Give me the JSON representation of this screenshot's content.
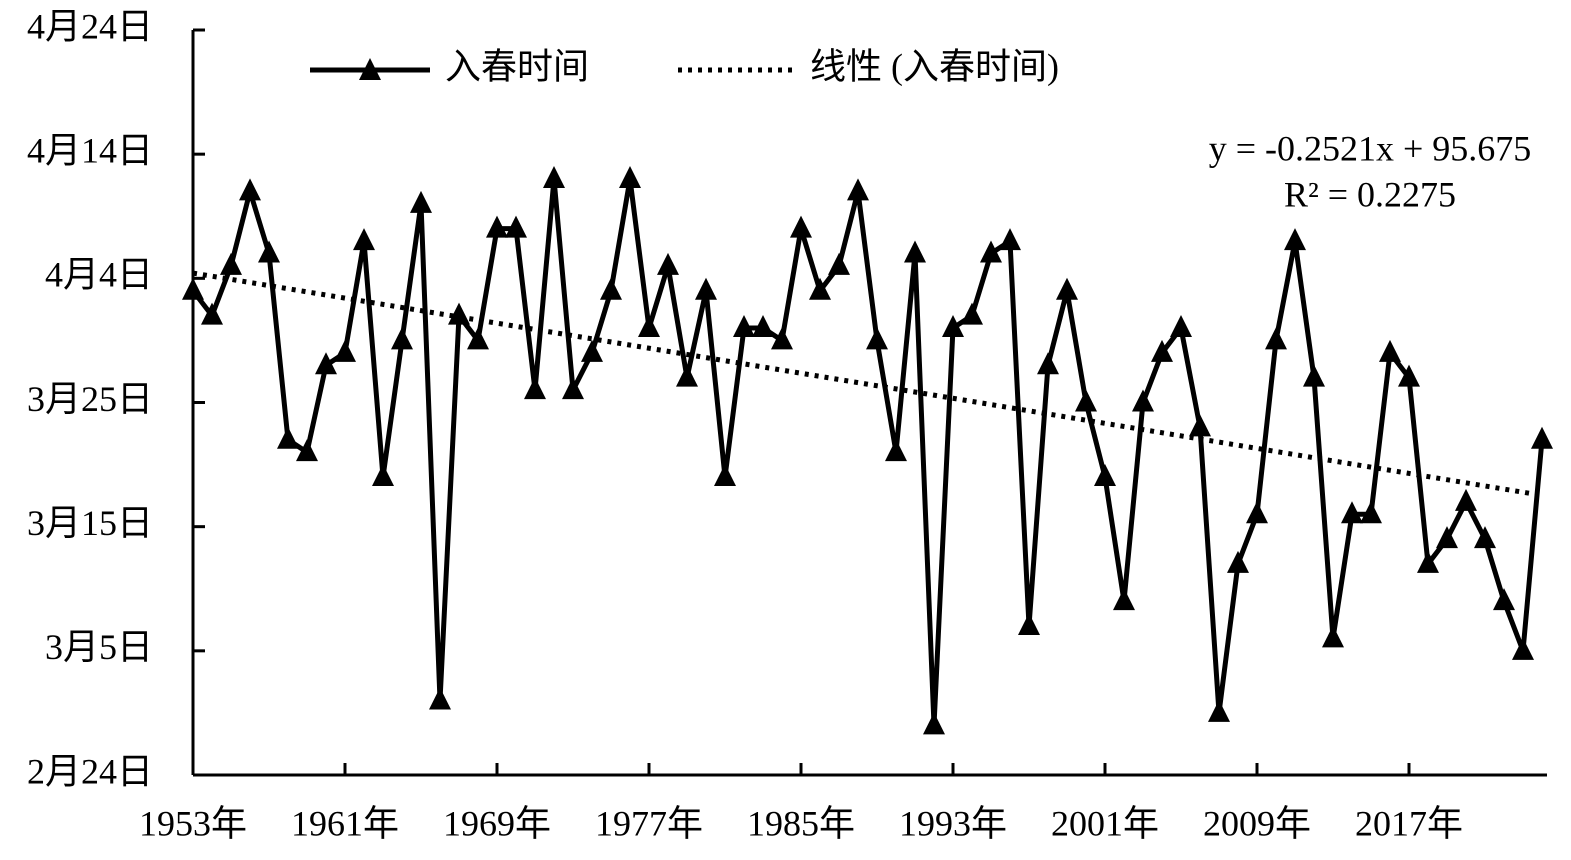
{
  "chart_data": {
    "type": "line",
    "categories": [
      "1953年",
      null,
      null,
      null,
      null,
      null,
      null,
      null,
      "1961年",
      null,
      null,
      null,
      null,
      null,
      null,
      null,
      "1969年",
      null,
      null,
      null,
      null,
      null,
      null,
      null,
      "1977年",
      null,
      null,
      null,
      null,
      null,
      null,
      null,
      "1985年",
      null,
      null,
      null,
      null,
      null,
      null,
      null,
      "1993年",
      null,
      null,
      null,
      null,
      null,
      null,
      null,
      "2001年",
      null,
      null,
      null,
      null,
      null,
      null,
      null,
      "2009年",
      null,
      null,
      null,
      null,
      null,
      null,
      null,
      "2017年",
      null,
      null,
      null,
      null,
      null,
      null,
      null
    ],
    "series": [
      {
        "name": "入春时间",
        "color": "#000000",
        "values": [
          94,
          92,
          96,
          102,
          97,
          82,
          81,
          88,
          89,
          98,
          79,
          90,
          101,
          61,
          92,
          90,
          99,
          99,
          86,
          103,
          86,
          89,
          94,
          103,
          91,
          96,
          87,
          94,
          79,
          91,
          91,
          90,
          99,
          94,
          96,
          102,
          90,
          81,
          97,
          59,
          91,
          92,
          97,
          98,
          67,
          88,
          94,
          85,
          79,
          69,
          85,
          89,
          91,
          83,
          60,
          72,
          76,
          90,
          98,
          87,
          66,
          76,
          76,
          89,
          87,
          72,
          74,
          77,
          74,
          69,
          65,
          82
        ]
      }
    ],
    "trendline": {
      "name": "线性 (入春时间)",
      "slope": -0.2521,
      "intercept": 95.675,
      "color": "#000000"
    },
    "annotations": [
      "y = -0.2521x + 95.675",
      "R² = 0.2275"
    ],
    "ylim": [
      55,
      115
    ],
    "yticks": [
      {
        "value": 55,
        "label": "2月24日"
      },
      {
        "value": 65,
        "label": "3月5日"
      },
      {
        "value": 75,
        "label": "3月15日"
      },
      {
        "value": 85,
        "label": "3月25日"
      },
      {
        "value": 95,
        "label": "4月4日"
      },
      {
        "value": 105,
        "label": "4月14日"
      },
      {
        "value": 115,
        "label": "4月24日"
      }
    ]
  }
}
